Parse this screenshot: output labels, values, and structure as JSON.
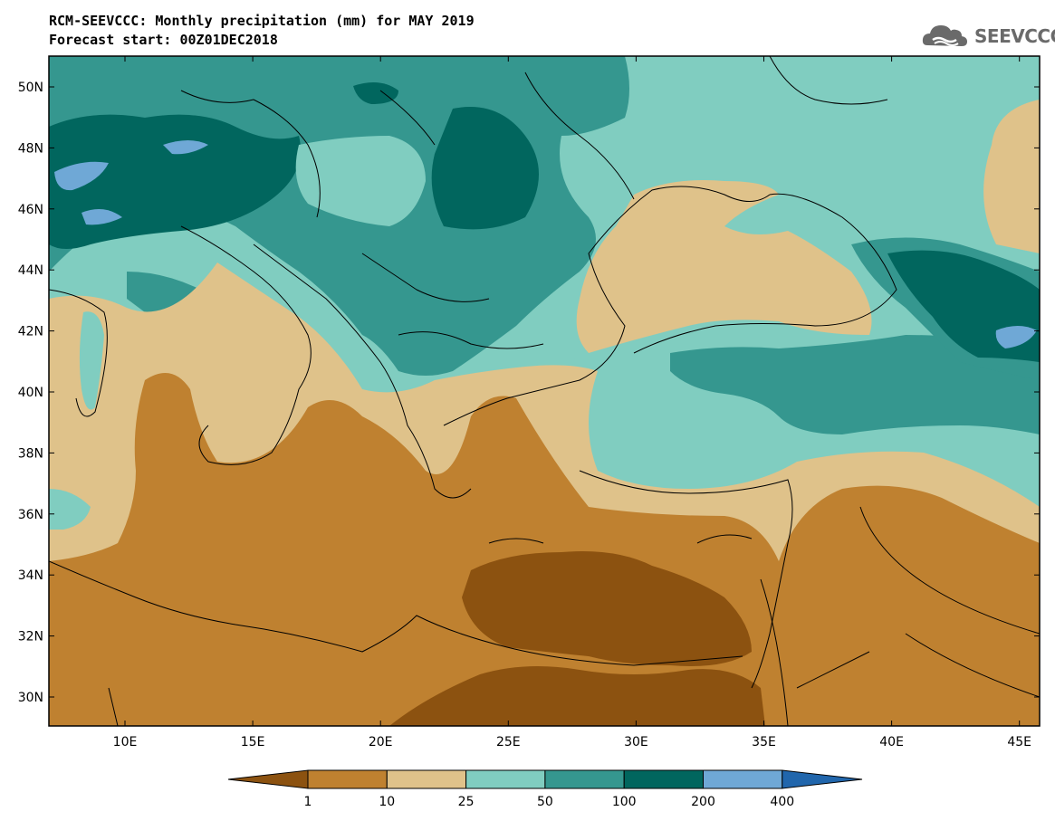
{
  "title_line1": "RCM-SEEVCCC: Monthly precipitation (mm) for MAY 2019",
  "title_line2": "Forecast start: 00Z01DEC2018",
  "logo_text": "SEEVCCC",
  "axes": {
    "lon_ticks": [
      "10E",
      "15E",
      "20E",
      "25E",
      "30E",
      "35E",
      "40E",
      "45E"
    ],
    "lat_ticks": [
      "50N",
      "48N",
      "46N",
      "44N",
      "42N",
      "40N",
      "38N",
      "36N",
      "34N",
      "32N",
      "30N"
    ]
  },
  "colorbar": {
    "labels": [
      "1",
      "10",
      "25",
      "50",
      "100",
      "200",
      "400"
    ],
    "colors": [
      "#8c5210",
      "#bf8130",
      "#dfc28a",
      "#80cdc0",
      "#35978f",
      "#01665e",
      "#6fa8d6",
      "#2166ac"
    ]
  },
  "palette": {
    "dark_brown": "#8c5210",
    "brown": "#bf8130",
    "tan": "#dfc28a",
    "light_teal": "#80cdc0",
    "teal": "#35978f",
    "dark_teal": "#01665e",
    "light_blue": "#6fa8d6"
  }
}
